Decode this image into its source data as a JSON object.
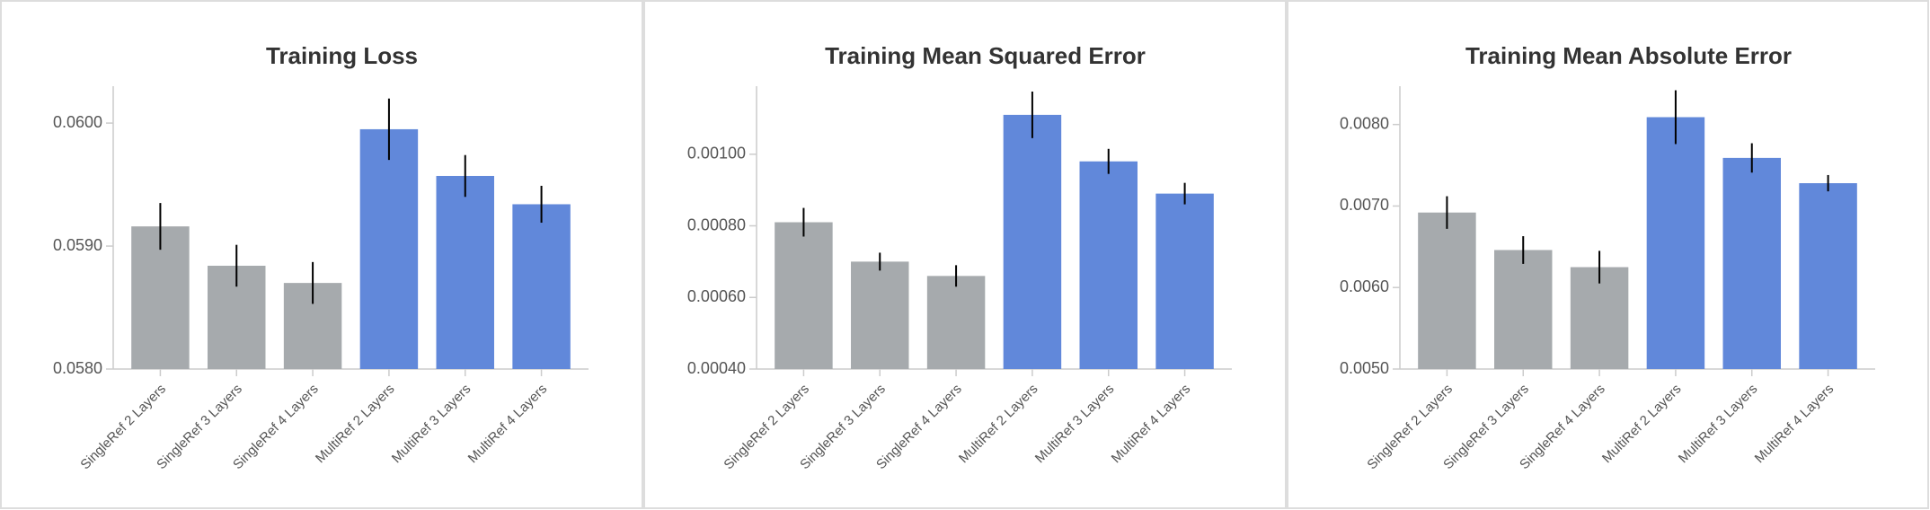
{
  "chart_data": [
    {
      "type": "bar",
      "title": "Training Loss",
      "categories": [
        "SingleRef 2 Layers",
        "SingleRef 3 Layers",
        "SingleRef 4 Layers",
        "MultiRef 2 Layers",
        "MultiRef 3 Layers",
        "MultiRef 4 Layers"
      ],
      "values": [
        0.05916,
        0.05884,
        0.0587,
        0.05995,
        0.05957,
        0.05934
      ],
      "errors": [
        0.00019,
        0.00017,
        0.00017,
        0.00025,
        0.00017,
        0.00015
      ],
      "colors": [
        "#a6aaad",
        "#a6aaad",
        "#a6aaad",
        "#6188da",
        "#6188da",
        "#6188da"
      ],
      "ylim": [
        0.058,
        0.0603
      ],
      "yticks": [
        {
          "value": 0.058,
          "label": "0.0580"
        },
        {
          "value": 0.059,
          "label": "0.0590"
        },
        {
          "value": 0.06,
          "label": "0.0600"
        }
      ]
    },
    {
      "type": "bar",
      "title": "Training Mean Squared Error",
      "categories": [
        "SingleRef 2 Layers",
        "SingleRef 3 Layers",
        "SingleRef 4 Layers",
        "MultiRef 2 Layers",
        "MultiRef 3 Layers",
        "MultiRef 4 Layers"
      ],
      "values": [
        0.00081,
        0.0007,
        0.00066,
        0.00111,
        0.00098,
        0.00089
      ],
      "errors": [
        4e-05,
        2.5e-05,
        3e-05,
        6.5e-05,
        3.5e-05,
        3e-05
      ],
      "colors": [
        "#a6aaad",
        "#a6aaad",
        "#a6aaad",
        "#6188da",
        "#6188da",
        "#6188da"
      ],
      "ylim": [
        0.0004,
        0.00119
      ],
      "yticks": [
        {
          "value": 0.0004,
          "label": "0.00040"
        },
        {
          "value": 0.0006,
          "label": "0.00060"
        },
        {
          "value": 0.0008,
          "label": "0.00080"
        },
        {
          "value": 0.001,
          "label": "0.00100"
        }
      ]
    },
    {
      "type": "bar",
      "title": "Training Mean Absolute Error",
      "categories": [
        "SingleRef 2 Layers",
        "SingleRef 3 Layers",
        "SingleRef 4 Layers",
        "MultiRef 2 Layers",
        "MultiRef 3 Layers",
        "MultiRef 4 Layers"
      ],
      "values": [
        0.00692,
        0.00646,
        0.00625,
        0.00809,
        0.00759,
        0.00728
      ],
      "errors": [
        0.0002,
        0.00017,
        0.0002,
        0.00033,
        0.00018,
        0.0001
      ],
      "colors": [
        "#a6aaad",
        "#a6aaad",
        "#a6aaad",
        "#6188da",
        "#6188da",
        "#6188da"
      ],
      "ylim": [
        0.005,
        0.00847
      ],
      "yticks": [
        {
          "value": 0.005,
          "label": "0.0050"
        },
        {
          "value": 0.006,
          "label": "0.0060"
        },
        {
          "value": 0.007,
          "label": "0.0070"
        },
        {
          "value": 0.008,
          "label": "0.0080"
        }
      ]
    }
  ]
}
